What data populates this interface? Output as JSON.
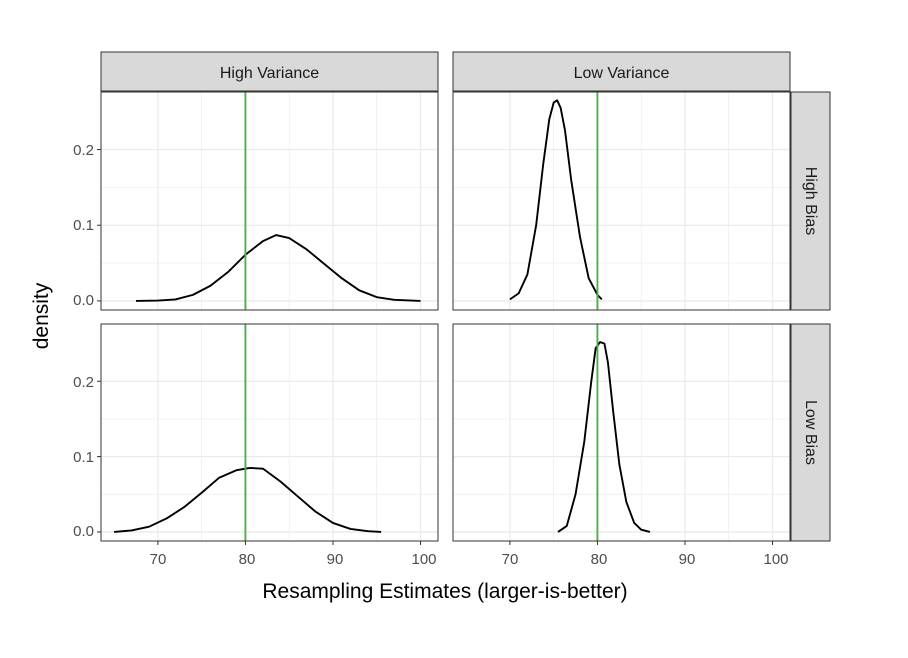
{
  "chart_data": {
    "type": "line",
    "xlabel": "Resampling Estimates (larger-is-better)",
    "ylabel": "density",
    "xlim": [
      63.5,
      102
    ],
    "ylim": [
      -0.012,
      0.276
    ],
    "x_ticks": [
      70,
      80,
      90,
      100
    ],
    "x_tick_labels": [
      "70",
      "80",
      "90",
      "100"
    ],
    "y_ticks": [
      0.0,
      0.1,
      0.2
    ],
    "y_tick_labels": [
      "0.0",
      "0.1",
      "0.2"
    ],
    "grid": true,
    "reference_line": {
      "x": 80,
      "color": "#4daf4a"
    },
    "colors": {
      "curve": "#000000",
      "reference": "#4daf4a",
      "strip_fill": "#d9d9d9",
      "grid": "#ebebeb"
    },
    "facet_cols": [
      "High Variance",
      "Low Variance"
    ],
    "facet_rows": [
      "High Bias",
      "Low Bias"
    ],
    "panels": [
      {
        "col": "High Variance",
        "row": "High Bias",
        "x": [
          67.5,
          70,
          72,
          74,
          76,
          78,
          80,
          82,
          83.5,
          85,
          87,
          89,
          91,
          93,
          95,
          97,
          100
        ],
        "y": [
          0.0,
          0.0005,
          0.002,
          0.008,
          0.02,
          0.038,
          0.061,
          0.079,
          0.087,
          0.083,
          0.068,
          0.049,
          0.03,
          0.014,
          0.005,
          0.0015,
          0.0
        ]
      },
      {
        "col": "Low Variance",
        "row": "High Bias",
        "x": [
          70,
          71,
          72,
          73,
          73.8,
          74.5,
          75,
          75.4,
          75.8,
          76.3,
          77,
          78,
          79,
          80,
          80.5
        ],
        "y": [
          0.002,
          0.01,
          0.035,
          0.1,
          0.18,
          0.24,
          0.262,
          0.265,
          0.255,
          0.225,
          0.16,
          0.085,
          0.03,
          0.008,
          0.002
        ]
      },
      {
        "col": "High Variance",
        "row": "Low Bias",
        "x": [
          65,
          67,
          69,
          71,
          73,
          75,
          77,
          79,
          80.5,
          82,
          84,
          86,
          88,
          90,
          92,
          94,
          95.5
        ],
        "y": [
          0.0,
          0.002,
          0.007,
          0.018,
          0.033,
          0.052,
          0.072,
          0.082,
          0.085,
          0.084,
          0.067,
          0.047,
          0.027,
          0.012,
          0.004,
          0.001,
          0.0
        ]
      },
      {
        "col": "Low Variance",
        "row": "Low Bias",
        "x": [
          75.5,
          76.5,
          77.5,
          78.5,
          79.3,
          79.8,
          80.3,
          80.8,
          81.2,
          81.8,
          82.5,
          83.3,
          84.2,
          85,
          86
        ],
        "y": [
          0.0,
          0.008,
          0.05,
          0.12,
          0.2,
          0.244,
          0.252,
          0.25,
          0.225,
          0.16,
          0.09,
          0.04,
          0.012,
          0.003,
          0.0
        ]
      }
    ]
  }
}
